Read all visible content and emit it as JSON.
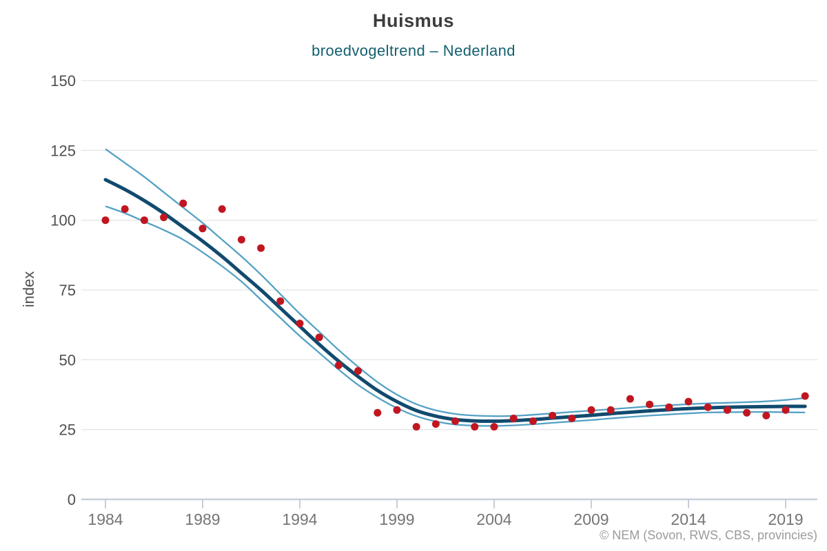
{
  "chart_data": {
    "type": "line",
    "title": "Huismus",
    "subtitle": "broedvogeltrend – Nederland",
    "ylabel": "index",
    "attribution": "© NEM (Sovon, RWS, CBS, provincies)",
    "legend": "none",
    "grid": true,
    "ylim": [
      0,
      150
    ],
    "xlim": [
      1982.8,
      2020.7
    ],
    "yticks": [
      0,
      25,
      50,
      75,
      100,
      125,
      150
    ],
    "xticks": [
      1984,
      1989,
      1994,
      1999,
      2004,
      2009,
      2014,
      2019
    ],
    "x_years": [
      1984,
      1985,
      1986,
      1987,
      1988,
      1989,
      1990,
      1991,
      1992,
      1993,
      1994,
      1995,
      1996,
      1997,
      1998,
      1999,
      2000,
      2001,
      2002,
      2003,
      2004,
      2005,
      2006,
      2007,
      2008,
      2009,
      2010,
      2011,
      2012,
      2013,
      2014,
      2015,
      2016,
      2017,
      2018,
      2019,
      2020
    ],
    "points": [
      100,
      104,
      100,
      101,
      106,
      97,
      104,
      93,
      90,
      71,
      63,
      58,
      48,
      46,
      31,
      32,
      26,
      27,
      28,
      26,
      26,
      29,
      28,
      30,
      29,
      32,
      32,
      36,
      34,
      33,
      35,
      33,
      32,
      31,
      30,
      32,
      37
    ],
    "trend": [
      114.5,
      111,
      107,
      102.5,
      97.5,
      92.5,
      87,
      81,
      75,
      68.5,
      62,
      55.5,
      49.5,
      44,
      39,
      35,
      31.8,
      29.8,
      28.6,
      28.1,
      28,
      28.2,
      28.6,
      29.1,
      29.6,
      30.1,
      30.7,
      31.2,
      31.7,
      32.1,
      32.5,
      32.8,
      33,
      33.1,
      33.2,
      33.3,
      33.3
    ],
    "ci_upper": [
      125.5,
      120.5,
      115.5,
      110,
      104.5,
      99,
      93,
      87,
      80.5,
      73.5,
      66.5,
      60,
      53.5,
      47.5,
      42,
      37.5,
      34.1,
      31.9,
      30.6,
      30,
      29.8,
      29.9,
      30.3,
      30.8,
      31.3,
      31.8,
      32.3,
      32.8,
      33.3,
      33.7,
      34.1,
      34.4,
      34.6,
      34.8,
      35.1,
      35.6,
      36.3
    ],
    "ci_lower": [
      105,
      102.5,
      99.5,
      96.5,
      93,
      88.5,
      83.5,
      78,
      71.5,
      65,
      58.5,
      52.5,
      46.5,
      41,
      36.5,
      32.7,
      29.8,
      27.9,
      26.8,
      26.4,
      26.3,
      26.5,
      26.9,
      27.4,
      27.9,
      28.4,
      29,
      29.5,
      30,
      30.4,
      30.8,
      31.1,
      31.2,
      31.3,
      31.3,
      31.2,
      31.1
    ],
    "colors": {
      "points": "#c11620",
      "trend": "#114a6e",
      "ci": "#54a1c4",
      "grid": "#e8e8e8",
      "axis": "#c7ced9",
      "title": "#3c3c3c",
      "subtitle": "#14606f",
      "tick_labels": "#4f4f4f",
      "x_tick_labels": "#757575",
      "attribution": "#9b9b9b"
    }
  }
}
